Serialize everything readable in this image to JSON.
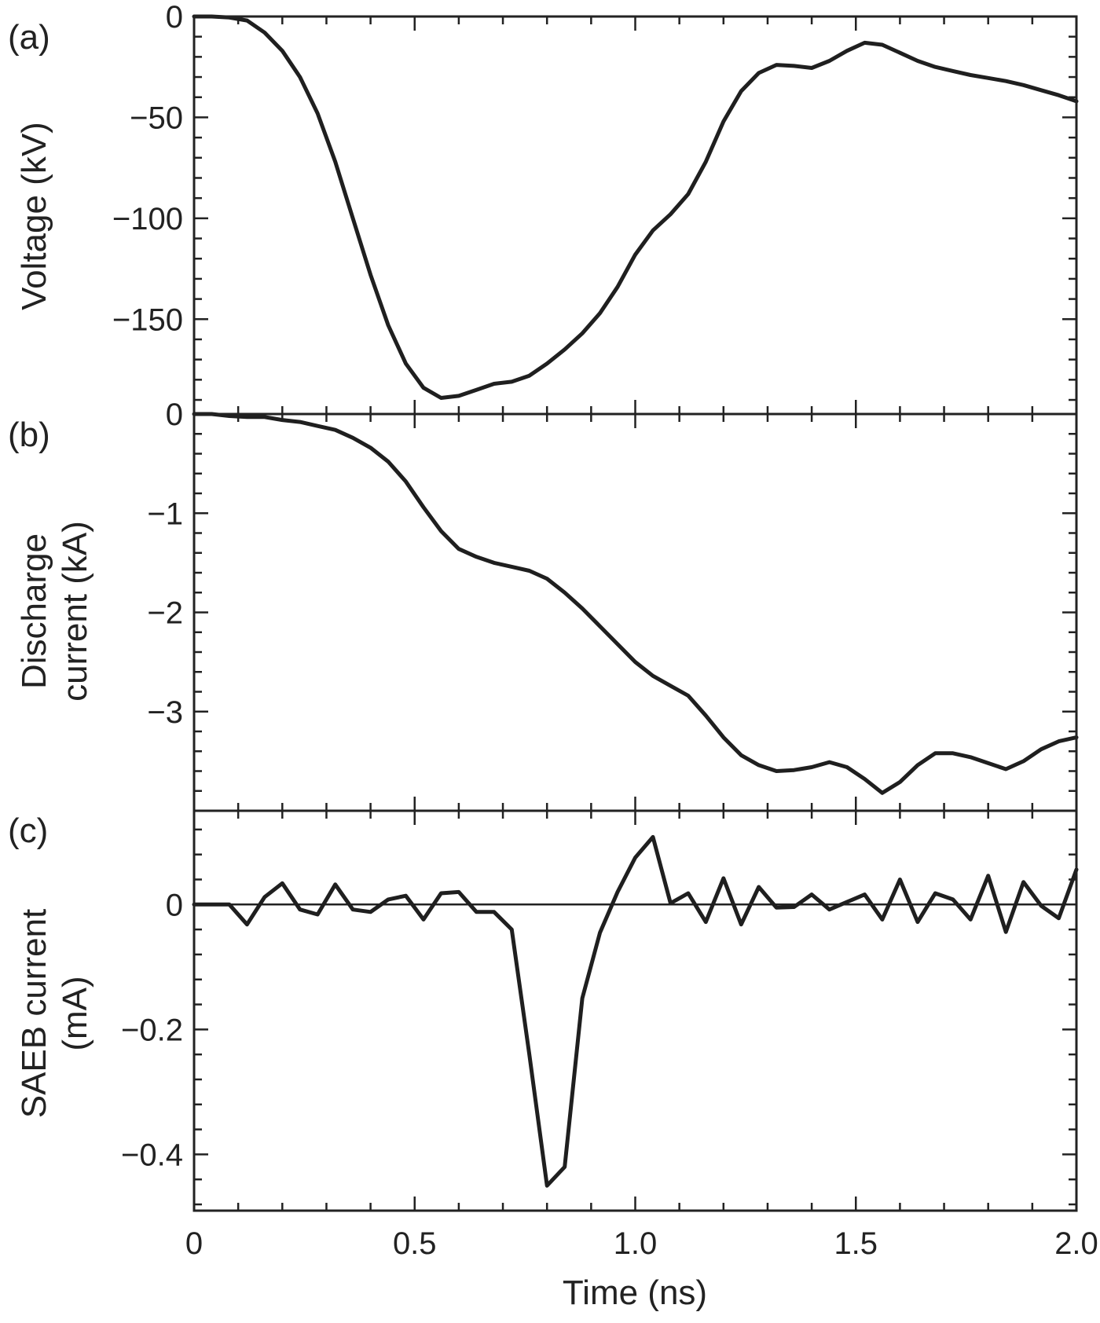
{
  "chart_data": [
    {
      "type": "line",
      "panel": "(a)",
      "ylabel": "Voltage (kV)",
      "xlim": [
        0,
        2.0
      ],
      "ylim": [
        -197,
        0
      ],
      "yticks": [
        0,
        -50,
        -100,
        -150
      ],
      "ytick_labels": [
        "0",
        "−50",
        "−100",
        "−150"
      ],
      "series": [
        {
          "x": [
            0,
            0.04,
            0.08,
            0.12,
            0.16,
            0.2,
            0.24,
            0.28,
            0.32,
            0.36,
            0.4,
            0.44,
            0.48,
            0.52,
            0.56,
            0.6,
            0.64,
            0.68,
            0.72,
            0.76,
            0.8,
            0.84,
            0.88,
            0.92,
            0.96,
            1.0,
            1.04,
            1.08,
            1.12,
            1.16,
            1.2,
            1.24,
            1.28,
            1.32,
            1.36,
            1.4,
            1.44,
            1.48,
            1.52,
            1.56,
            1.6,
            1.64,
            1.68,
            1.72,
            1.76,
            1.8,
            1.84,
            1.88,
            1.92,
            1.96,
            2.0
          ],
          "y": [
            0,
            0,
            -0.5,
            -2,
            -8,
            -17,
            -30,
            -48,
            -72,
            -100,
            -128,
            -153,
            -172,
            -184,
            -189,
            -188,
            -185,
            -182,
            -181,
            -178,
            -172,
            -165,
            -157,
            -147,
            -134,
            -118,
            -106,
            -98,
            -88,
            -72,
            -52,
            -37,
            -28,
            -24,
            -24.5,
            -25.5,
            -22,
            -17,
            -13,
            -14,
            -18,
            -22,
            -25,
            -27,
            -29,
            -30.5,
            -32,
            -34,
            -36.5,
            -39,
            -42
          ]
        }
      ]
    },
    {
      "type": "line",
      "panel": "(b)",
      "ylabel": "Discharge current (kA)",
      "xlim": [
        0,
        2.0
      ],
      "ylim": [
        -4,
        0
      ],
      "yticks": [
        0,
        -1,
        -2,
        -3
      ],
      "ytick_labels": [
        "0",
        "−1",
        "−2",
        "−3"
      ],
      "series": [
        {
          "x": [
            0,
            0.04,
            0.08,
            0.12,
            0.16,
            0.2,
            0.24,
            0.28,
            0.32,
            0.36,
            0.4,
            0.44,
            0.48,
            0.52,
            0.56,
            0.6,
            0.64,
            0.68,
            0.72,
            0.76,
            0.8,
            0.84,
            0.88,
            0.92,
            0.96,
            1.0,
            1.04,
            1.08,
            1.12,
            1.16,
            1.2,
            1.24,
            1.28,
            1.32,
            1.36,
            1.4,
            1.44,
            1.48,
            1.52,
            1.56,
            1.6,
            1.64,
            1.68,
            1.72,
            1.76,
            1.8,
            1.84,
            1.88,
            1.92,
            1.96,
            2.0
          ],
          "y": [
            0,
            0,
            -0.02,
            -0.03,
            -0.03,
            -0.06,
            -0.08,
            -0.12,
            -0.16,
            -0.24,
            -0.34,
            -0.48,
            -0.68,
            -0.94,
            -1.18,
            -1.36,
            -1.44,
            -1.5,
            -1.54,
            -1.58,
            -1.66,
            -1.8,
            -1.96,
            -2.14,
            -2.32,
            -2.5,
            -2.64,
            -2.74,
            -2.84,
            -3.04,
            -3.26,
            -3.44,
            -3.54,
            -3.6,
            -3.59,
            -3.56,
            -3.51,
            -3.56,
            -3.68,
            -3.82,
            -3.71,
            -3.54,
            -3.42,
            -3.42,
            -3.46,
            -3.52,
            -3.58,
            -3.5,
            -3.38,
            -3.3,
            -3.26
          ]
        }
      ]
    },
    {
      "type": "line",
      "panel": "(c)",
      "ylabel": "SAEB current (mA)",
      "xlabel": "Time (ns)",
      "xlim": [
        0,
        2.0
      ],
      "ylim": [
        -0.49,
        0.15
      ],
      "yticks": [
        0,
        -0.2,
        -0.4
      ],
      "ytick_labels": [
        "0",
        "−0.2",
        "−0.4"
      ],
      "xticks": [
        0,
        0.5,
        1.0,
        1.5,
        2.0
      ],
      "xtick_labels": [
        "0",
        "0.5",
        "1.0",
        "1.5",
        "2.0"
      ],
      "zero_line": true,
      "series": [
        {
          "x": [
            0,
            0.04,
            0.08,
            0.12,
            0.16,
            0.2,
            0.24,
            0.28,
            0.32,
            0.36,
            0.4,
            0.44,
            0.48,
            0.52,
            0.56,
            0.6,
            0.64,
            0.68,
            0.72,
            0.76,
            0.8,
            0.84,
            0.88,
            0.92,
            0.96,
            1.0,
            1.04,
            1.08,
            1.12,
            1.16,
            1.2,
            1.24,
            1.28,
            1.32,
            1.36,
            1.4,
            1.44,
            1.48,
            1.52,
            1.56,
            1.6,
            1.64,
            1.68,
            1.72,
            1.76,
            1.8,
            1.84,
            1.88,
            1.92,
            1.96,
            2.0
          ],
          "y": [
            0,
            0,
            0,
            -0.032,
            0.012,
            0.034,
            -0.008,
            -0.016,
            0.032,
            -0.008,
            -0.012,
            0.008,
            0.014,
            -0.024,
            0.018,
            0.02,
            -0.012,
            -0.012,
            -0.04,
            -0.24,
            -0.45,
            -0.42,
            -0.15,
            -0.045,
            0.02,
            0.075,
            0.108,
            0.002,
            0.018,
            -0.028,
            0.042,
            -0.032,
            0.028,
            -0.005,
            -0.004,
            0.016,
            -0.008,
            0.004,
            0.016,
            -0.024,
            0.04,
            -0.028,
            0.018,
            0.008,
            -0.024,
            0.046,
            -0.044,
            0.036,
            -0.002,
            -0.022,
            0.056
          ]
        }
      ]
    }
  ]
}
